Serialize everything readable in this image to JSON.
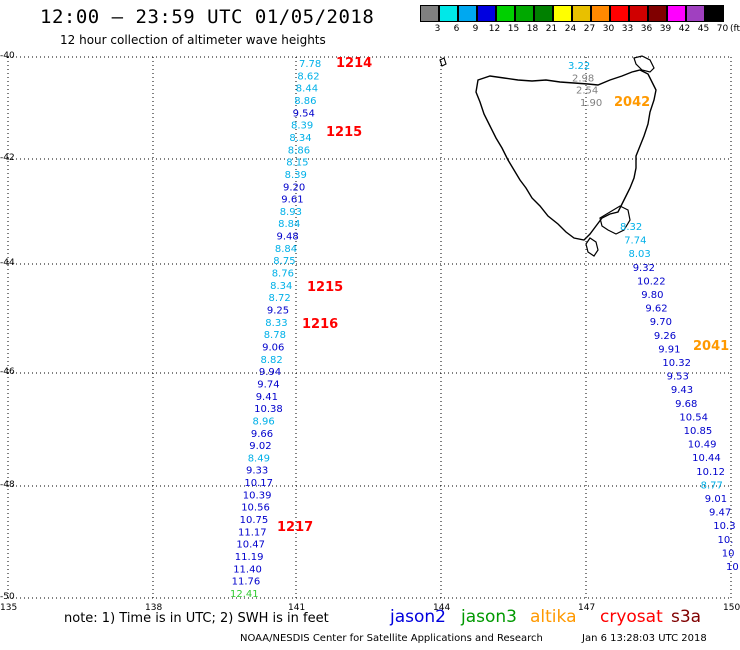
{
  "header": {
    "title": "12:00 – 23:59 UTC 01/05/2018",
    "subtitle": "12 hour collection of altimeter wave heights"
  },
  "colorbar": {
    "labels": [
      "3",
      "6",
      "9",
      "12",
      "15",
      "18",
      "21",
      "24",
      "27",
      "30",
      "33",
      "36",
      "39",
      "42",
      "45",
      "70"
    ],
    "unit": "(ft)",
    "colors": [
      "#808080",
      "#00e8e8",
      "#00a8f0",
      "#0000e0",
      "#00d000",
      "#00a800",
      "#008000",
      "#ffff00",
      "#e8c000",
      "#ff8800",
      "#ff0000",
      "#d00000",
      "#800000",
      "#ff00ff",
      "#a040c0",
      "#000000"
    ]
  },
  "axes": {
    "lat_labels": [
      "-40",
      "-42",
      "-44",
      "-46",
      "-48",
      "-50"
    ],
    "lon_labels": [
      "135",
      "138",
      "141",
      "144",
      "147",
      "150"
    ]
  },
  "tracks": {
    "west": [
      {
        "v": "7.78",
        "c": "cyan"
      },
      {
        "v": "8.62",
        "c": "cyan"
      },
      {
        "v": "8.44",
        "c": "cyan"
      },
      {
        "v": "8.86",
        "c": "cyan"
      },
      {
        "v": "9.54",
        "c": "blue"
      },
      {
        "v": "8.39",
        "c": "cyan"
      },
      {
        "v": "8.34",
        "c": "cyan"
      },
      {
        "v": "8.86",
        "c": "cyan"
      },
      {
        "v": "8.15",
        "c": "cyan"
      },
      {
        "v": "8.39",
        "c": "cyan"
      },
      {
        "v": "9.20",
        "c": "blue"
      },
      {
        "v": "9.61",
        "c": "blue"
      },
      {
        "v": "8.93",
        "c": "cyan"
      },
      {
        "v": "8.84",
        "c": "cyan"
      },
      {
        "v": "9.48",
        "c": "blue"
      },
      {
        "v": "8.84",
        "c": "cyan"
      },
      {
        "v": "8.75",
        "c": "cyan"
      },
      {
        "v": "8.76",
        "c": "cyan"
      },
      {
        "v": "8.34",
        "c": "cyan"
      },
      {
        "v": "8.72",
        "c": "cyan"
      },
      {
        "v": "9.25",
        "c": "blue"
      },
      {
        "v": "8.33",
        "c": "cyan"
      },
      {
        "v": "8.78",
        "c": "cyan"
      },
      {
        "v": "9.06",
        "c": "blue"
      },
      {
        "v": "8.82",
        "c": "cyan"
      },
      {
        "v": "9.94",
        "c": "blue"
      },
      {
        "v": "9.74",
        "c": "blue"
      },
      {
        "v": "9.41",
        "c": "blue"
      },
      {
        "v": "10.38",
        "c": "blue"
      },
      {
        "v": "8.96",
        "c": "cyan"
      },
      {
        "v": "9.66",
        "c": "blue"
      },
      {
        "v": "9.02",
        "c": "blue"
      },
      {
        "v": "8.49",
        "c": "cyan"
      },
      {
        "v": "9.33",
        "c": "blue"
      },
      {
        "v": "10.17",
        "c": "blue"
      },
      {
        "v": "10.39",
        "c": "blue"
      },
      {
        "v": "10.56",
        "c": "blue"
      },
      {
        "v": "10.75",
        "c": "blue"
      },
      {
        "v": "11.17",
        "c": "blue"
      },
      {
        "v": "10.47",
        "c": "blue"
      },
      {
        "v": "11.19",
        "c": "blue"
      },
      {
        "v": "11.40",
        "c": "blue"
      },
      {
        "v": "11.76",
        "c": "blue"
      },
      {
        "v": "12.41",
        "c": "green"
      }
    ],
    "north": [
      {
        "v": "3.22",
        "c": "cyan"
      },
      {
        "v": "2.98",
        "c": "gray"
      },
      {
        "v": "2.54",
        "c": "gray"
      },
      {
        "v": "1.90",
        "c": "gray"
      }
    ],
    "east": [
      {
        "v": "8.32",
        "c": "cyan"
      },
      {
        "v": "7.74",
        "c": "cyan"
      },
      {
        "v": "8.03",
        "c": "cyan"
      },
      {
        "v": "9.32",
        "c": "blue"
      },
      {
        "v": "10.22",
        "c": "blue"
      },
      {
        "v": "9.80",
        "c": "blue"
      },
      {
        "v": "9.62",
        "c": "blue"
      },
      {
        "v": "9.70",
        "c": "blue"
      },
      {
        "v": "9.26",
        "c": "blue"
      },
      {
        "v": "9.91",
        "c": "blue"
      },
      {
        "v": "10.32",
        "c": "blue"
      },
      {
        "v": "9.53",
        "c": "blue"
      },
      {
        "v": "9.43",
        "c": "blue"
      },
      {
        "v": "9.68",
        "c": "blue"
      },
      {
        "v": "10.54",
        "c": "blue"
      },
      {
        "v": "10.85",
        "c": "blue"
      },
      {
        "v": "10.49",
        "c": "blue"
      },
      {
        "v": "10.44",
        "c": "blue"
      },
      {
        "v": "10.12",
        "c": "blue"
      },
      {
        "v": "8.77",
        "c": "cyan"
      },
      {
        "v": "9.01",
        "c": "blue"
      },
      {
        "v": "9.47",
        "c": "blue"
      },
      {
        "v": "10.3",
        "c": "blue"
      },
      {
        "v": "10.",
        "c": "blue"
      },
      {
        "v": "10",
        "c": "blue"
      },
      {
        "v": "10",
        "c": "blue"
      }
    ]
  },
  "orbits": [
    {
      "label": "1214",
      "color": "red"
    },
    {
      "label": "1215",
      "color": "red"
    },
    {
      "label": "1215",
      "color": "red"
    },
    {
      "label": "1216",
      "color": "red"
    },
    {
      "label": "1217",
      "color": "red"
    },
    {
      "label": "2042",
      "color": "orange"
    },
    {
      "label": "2041",
      "color": "orange"
    }
  ],
  "footer": {
    "note": "note:  1) Time is in UTC;  2) SWH is in feet",
    "satellites": [
      {
        "name": "jason2",
        "color": "#0000dd"
      },
      {
        "name": "jason3",
        "color": "#009900"
      },
      {
        "name": "altika",
        "color": "#ff9900"
      },
      {
        "name": "cryosat",
        "color": "#ff0000"
      },
      {
        "name": "s3a",
        "color": "#800000"
      }
    ],
    "credit": "NOAA/NESDIS Center for Satellite Applications and Research",
    "generated": "Jan  6 13:28:03 UTC 2018"
  },
  "palette": {
    "cyan": "#00b0e8",
    "blue": "#0000cc",
    "gray": "#808080",
    "green": "#33cc33",
    "red": "#ff0000",
    "orange": "#ff9900"
  }
}
